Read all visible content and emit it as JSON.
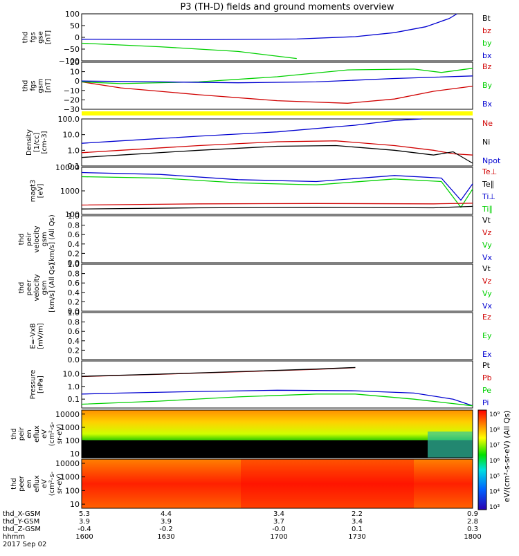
{
  "title": "P3 (TH-D) fields and ground moments overview",
  "colors": {
    "black": "#000000",
    "red": "#d00000",
    "green": "#00d000",
    "blue": "#0000d0",
    "yellow": "#ffff00"
  },
  "footer": {
    "rows": [
      {
        "label": "thd_X-GSM",
        "values": [
          "5.3",
          "4.4",
          "3.4",
          "2.2",
          "0.9"
        ]
      },
      {
        "label": "thd_Y-GSM",
        "values": [
          "3.9",
          "3.9",
          "3.7",
          "3.4",
          "2.8"
        ]
      },
      {
        "label": "thd_Z-GSM",
        "values": [
          "-0.4",
          "-0.2",
          "-0.0",
          "0.1",
          "0.3"
        ]
      },
      {
        "label": "hhmm",
        "values": [
          "1600",
          "1630",
          "1700",
          "1730",
          "1800"
        ]
      }
    ],
    "date": "2017 Sep 02"
  },
  "colorbar": {
    "ticks": [
      "10⁹",
      "10⁸",
      "10⁷",
      "10⁶",
      "10⁵",
      "10⁴",
      "10³"
    ],
    "label": "eV/(cm²-s-sr-eV) (All Qs)"
  },
  "chart_data": [
    {
      "type": "line",
      "id": "fgs_gse",
      "ylabel": [
        "thd",
        "fgs",
        "gse",
        "[nT]"
      ],
      "ylim": [
        -100,
        100
      ],
      "yticks": [
        "100",
        "50",
        "0",
        "−50",
        "−100"
      ],
      "legend": [
        {
          "name": "Bt",
          "color": "black"
        },
        {
          "name": "bz",
          "color": "red"
        },
        {
          "name": "by",
          "color": "green"
        },
        {
          "name": "bx",
          "color": "blue"
        }
      ],
      "series": [
        {
          "name": "bx",
          "color": "blue",
          "x": [
            0,
            0.3,
            0.55,
            0.7,
            0.8,
            0.88,
            0.94,
            0.96
          ],
          "y": [
            -8,
            -10,
            -7,
            3,
            20,
            45,
            80,
            100
          ]
        },
        {
          "name": "by",
          "color": "green",
          "x": [
            0,
            0.2,
            0.4,
            0.55
          ],
          "y": [
            -25,
            -40,
            -60,
            -90
          ]
        }
      ]
    },
    {
      "type": "line",
      "id": "fgs_gsm",
      "ylabel": [
        "thd",
        "fgs",
        "gsm",
        "[nT]"
      ],
      "ylim": [
        -35,
        20
      ],
      "yticks": [
        "20",
        "10",
        "0",
        "−10",
        "−20",
        "−30"
      ],
      "legend": [
        {
          "name": "Bz",
          "color": "red"
        },
        {
          "name": "By",
          "color": "green"
        },
        {
          "name": "Bx",
          "color": "blue"
        }
      ],
      "series": [
        {
          "name": "Bz",
          "color": "red",
          "x": [
            0,
            0.1,
            0.3,
            0.5,
            0.68,
            0.8,
            0.9,
            1
          ],
          "y": [
            -3,
            -10,
            -18,
            -25,
            -28,
            -23,
            -14,
            -8
          ]
        },
        {
          "name": "By",
          "color": "green",
          "x": [
            0,
            0.1,
            0.3,
            0.5,
            0.68,
            0.85,
            0.92,
            1
          ],
          "y": [
            -3,
            -5,
            -3,
            3,
            11,
            12,
            8,
            13
          ]
        },
        {
          "name": "Bx",
          "color": "blue",
          "x": [
            0,
            0.2,
            0.4,
            0.6,
            0.8,
            1
          ],
          "y": [
            -2,
            -3,
            -4,
            -3,
            1,
            4
          ]
        }
      ]
    },
    {
      "type": "line",
      "id": "density",
      "ylabel": [
        "Density",
        "[1/cc]",
        "[cm-3]"
      ],
      "scale": "log",
      "ylim": [
        0.1,
        100
      ],
      "yticks": [
        "100.0",
        "10.0",
        "1.0",
        "0.1"
      ],
      "legend": [
        {
          "name": "Ne",
          "color": "red"
        },
        {
          "name": "Ni",
          "color": "black"
        },
        {
          "name": "Npot",
          "color": "blue"
        }
      ],
      "series": [
        {
          "name": "Npot",
          "color": "blue",
          "x": [
            0,
            0.1,
            0.3,
            0.5,
            0.7,
            0.8,
            0.87
          ],
          "y": [
            2.8,
            4,
            8,
            15,
            40,
            80,
            100
          ]
        },
        {
          "name": "Ne",
          "color": "red",
          "x": [
            0,
            0.1,
            0.3,
            0.5,
            0.65,
            0.8,
            0.9,
            0.95,
            1
          ],
          "y": [
            0.7,
            1,
            2,
            3.5,
            4,
            2,
            1,
            0.6,
            0.5
          ]
        },
        {
          "name": "Ni",
          "color": "black",
          "x": [
            0,
            0.1,
            0.3,
            0.5,
            0.65,
            0.8,
            0.9,
            0.95,
            1
          ],
          "y": [
            0.35,
            0.5,
            1,
            1.8,
            2,
            1,
            0.5,
            0.8,
            0.15
          ]
        }
      ]
    },
    {
      "type": "line",
      "id": "temp",
      "ylabel": [
        "magt3",
        "[eV]"
      ],
      "scale": "log",
      "ylim": [
        100,
        10000
      ],
      "yticks": [
        "10000",
        "1000",
        "100"
      ],
      "legend": [
        {
          "name": "Te⊥",
          "color": "red"
        },
        {
          "name": "Te∥",
          "color": "black"
        },
        {
          "name": "Ti⊥",
          "color": "blue"
        },
        {
          "name": "Ti∥",
          "color": "green"
        }
      ],
      "series": [
        {
          "name": "Ti⊥",
          "color": "blue",
          "x": [
            0,
            0.2,
            0.4,
            0.6,
            0.8,
            0.92,
            0.97,
            1
          ],
          "y": [
            6000,
            5000,
            3000,
            2500,
            4500,
            3500,
            400,
            2000
          ]
        },
        {
          "name": "Ti∥",
          "color": "green",
          "x": [
            0,
            0.2,
            0.4,
            0.6,
            0.8,
            0.92,
            0.97,
            1
          ],
          "y": [
            4000,
            3500,
            2200,
            1800,
            3200,
            2500,
            200,
            1200
          ]
        },
        {
          "name": "Te⊥",
          "color": "red",
          "x": [
            0,
            0.3,
            0.6,
            0.9,
            1
          ],
          "y": [
            250,
            280,
            290,
            280,
            300
          ]
        },
        {
          "name": "Te∥",
          "color": "black",
          "x": [
            0,
            0.3,
            0.6,
            0.9,
            1
          ],
          "y": [
            170,
            190,
            200,
            190,
            220
          ]
        }
      ]
    },
    {
      "type": "line",
      "id": "peir_vel",
      "ylabel": [
        "thd",
        "peir",
        "velocity",
        "gsm",
        "[km/s] (All Qs)"
      ],
      "ylim": [
        0,
        1
      ],
      "yticks": [
        "1.0",
        "0.8",
        "0.6",
        "0.4",
        "0.2",
        "0.0"
      ],
      "legend": [
        {
          "name": "Vt",
          "color": "black"
        },
        {
          "name": "Vz",
          "color": "red"
        },
        {
          "name": "Vy",
          "color": "green"
        },
        {
          "name": "Vx",
          "color": "blue"
        }
      ],
      "series": []
    },
    {
      "type": "line",
      "id": "peer_vel",
      "ylabel": [
        "thd",
        "peer",
        "velocity",
        "gsm",
        "[km/s] (All Qs)"
      ],
      "ylim": [
        0,
        1
      ],
      "yticks": [
        "1.0",
        "0.8",
        "0.6",
        "0.4",
        "0.2",
        "0.0"
      ],
      "legend": [
        {
          "name": "Vt",
          "color": "black"
        },
        {
          "name": "Vz",
          "color": "red"
        },
        {
          "name": "Vy",
          "color": "green"
        },
        {
          "name": "Vx",
          "color": "blue"
        }
      ],
      "series": []
    },
    {
      "type": "line",
      "id": "efield",
      "ylabel": [
        "E=-VxB",
        "[mV/m]"
      ],
      "ylim": [
        0,
        1
      ],
      "yticks": [
        "1.0",
        "0.8",
        "0.6",
        "0.4",
        "0.2",
        "0.0"
      ],
      "legend": [
        {
          "name": "Ez",
          "color": "red"
        },
        {
          "name": "Ey",
          "color": "green"
        },
        {
          "name": "Ex",
          "color": "blue"
        }
      ],
      "series": []
    },
    {
      "type": "line",
      "id": "pressure",
      "ylabel": [
        "Pressure",
        "[nPa]"
      ],
      "scale": "log",
      "ylim": [
        0.02,
        100
      ],
      "yticks": [
        "10.0",
        "1.0",
        "0.1"
      ],
      "legend": [
        {
          "name": "Pt",
          "color": "black"
        },
        {
          "name": "Pb",
          "color": "red"
        },
        {
          "name": "Pe",
          "color": "green"
        },
        {
          "name": "Pi",
          "color": "blue"
        }
      ],
      "series": [
        {
          "name": "Pb",
          "color": "red",
          "x": [
            0,
            0.2,
            0.4,
            0.6,
            0.7
          ],
          "y": [
            6,
            9,
            14,
            22,
            30
          ]
        },
        {
          "name": "Pt",
          "color": "black",
          "x": [
            0,
            0.2,
            0.4,
            0.6,
            0.7
          ],
          "y": [
            6.2,
            9.3,
            14.5,
            23,
            31
          ]
        },
        {
          "name": "Pi",
          "color": "blue",
          "x": [
            0,
            0.1,
            0.3,
            0.5,
            0.7,
            0.85,
            0.95,
            1
          ],
          "y": [
            0.25,
            0.3,
            0.4,
            0.5,
            0.45,
            0.3,
            0.1,
            0.03
          ]
        },
        {
          "name": "Pe",
          "color": "green",
          "x": [
            0,
            0.2,
            0.4,
            0.6,
            0.7,
            0.85,
            1
          ],
          "y": [
            0.04,
            0.07,
            0.15,
            0.25,
            0.25,
            0.1,
            0.03
          ]
        }
      ]
    },
    {
      "type": "heatmap",
      "id": "peir_en",
      "ylabel": [
        "thd",
        "peir",
        "en",
        "eflux",
        "eV",
        "(cm²-s-",
        "sr-eV)"
      ],
      "scale": "log",
      "ylim": [
        5,
        20000
      ],
      "yticks": [
        "10000",
        "1000",
        "100",
        "10"
      ]
    },
    {
      "type": "heatmap",
      "id": "peer_en",
      "ylabel": [
        "thd",
        "peer",
        "en",
        "eflux",
        "eV",
        "(cm²-s-",
        "sr-eV)"
      ],
      "scale": "log",
      "ylim": [
        5,
        20000
      ],
      "yticks": [
        "10000",
        "1000",
        "100",
        "10"
      ]
    }
  ]
}
